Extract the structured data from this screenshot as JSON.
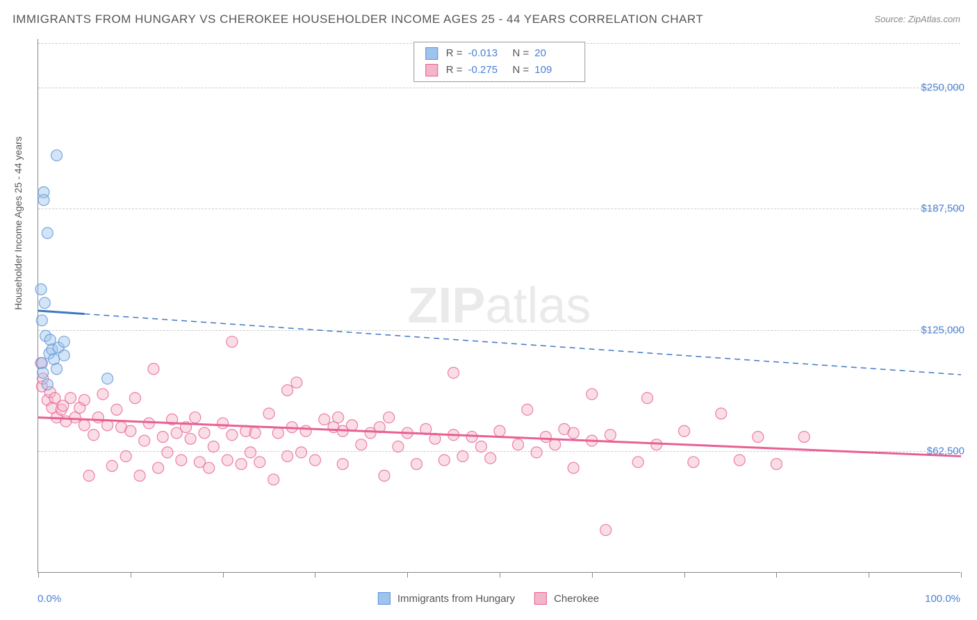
{
  "title": "IMMIGRANTS FROM HUNGARY VS CHEROKEE HOUSEHOLDER INCOME AGES 25 - 44 YEARS CORRELATION CHART",
  "source": "Source: ZipAtlas.com",
  "watermark": {
    "part1": "ZIP",
    "part2": "atlas"
  },
  "chart": {
    "type": "scatter",
    "background_color": "#ffffff",
    "grid_color": "#cccccc",
    "axis_color": "#888888",
    "ylabel": "Householder Income Ages 25 - 44 years",
    "ylabel_fontsize": 14,
    "ylabel_color": "#555555",
    "y_min": 0,
    "y_max": 275000,
    "y_ticks": [
      62500,
      125000,
      187500,
      250000
    ],
    "y_tick_labels": [
      "$62,500",
      "$125,000",
      "$187,500",
      "$250,000"
    ],
    "y_tick_color": "#4a7fd4",
    "x_min": 0,
    "x_max": 100,
    "x_ticks": [
      0,
      10,
      20,
      30,
      40,
      50,
      60,
      70,
      80,
      90,
      100
    ],
    "x_end_labels": [
      "0.0%",
      "100.0%"
    ],
    "x_tick_color": "#4a7fd4",
    "marker_radius": 8,
    "marker_opacity": 0.45,
    "series": [
      {
        "name": "Immigrants from Hungary",
        "color_fill": "#9ec3ed",
        "color_stroke": "#5a92d6",
        "stats": {
          "R": "-0.013",
          "N": "20"
        },
        "trend": {
          "x1": 0,
          "y1": 135000,
          "x2": 100,
          "y2": 102000,
          "solid_until_x": 5,
          "solid_width": 3,
          "dash": "8,6",
          "dash_width": 1.5,
          "color": "#3f77c2"
        },
        "points": [
          {
            "x": 0.4,
            "y": 108000
          },
          {
            "x": 0.4,
            "y": 130000
          },
          {
            "x": 0.5,
            "y": 103000
          },
          {
            "x": 0.6,
            "y": 196000
          },
          {
            "x": 0.6,
            "y": 192000
          },
          {
            "x": 0.7,
            "y": 139000
          },
          {
            "x": 0.8,
            "y": 122000
          },
          {
            "x": 1.0,
            "y": 97000
          },
          {
            "x": 1.2,
            "y": 113000
          },
          {
            "x": 1.3,
            "y": 120000
          },
          {
            "x": 1.5,
            "y": 115000
          },
          {
            "x": 1.7,
            "y": 110000
          },
          {
            "x": 2.0,
            "y": 215000
          },
          {
            "x": 2.0,
            "y": 105000
          },
          {
            "x": 1.0,
            "y": 175000
          },
          {
            "x": 0.3,
            "y": 146000
          },
          {
            "x": 2.2,
            "y": 116000
          },
          {
            "x": 2.8,
            "y": 112000
          },
          {
            "x": 2.8,
            "y": 119000
          },
          {
            "x": 7.5,
            "y": 100000
          }
        ]
      },
      {
        "name": "Cherokee",
        "color_fill": "#f3b5c8",
        "color_stroke": "#e85f94",
        "stats": {
          "R": "-0.275",
          "N": "109"
        },
        "trend": {
          "x1": 0,
          "y1": 80000,
          "x2": 100,
          "y2": 60000,
          "solid_until_x": 100,
          "solid_width": 3,
          "dash": "",
          "dash_width": 0,
          "color": "#e85f94"
        },
        "points": [
          {
            "x": 0.3,
            "y": 108000
          },
          {
            "x": 0.4,
            "y": 96000
          },
          {
            "x": 0.5,
            "y": 100000
          },
          {
            "x": 1.0,
            "y": 89000
          },
          {
            "x": 1.3,
            "y": 93000
          },
          {
            "x": 1.5,
            "y": 85000
          },
          {
            "x": 1.8,
            "y": 90000
          },
          {
            "x": 2.0,
            "y": 80000
          },
          {
            "x": 2.5,
            "y": 84000
          },
          {
            "x": 2.7,
            "y": 86000
          },
          {
            "x": 3.0,
            "y": 78000
          },
          {
            "x": 3.5,
            "y": 90000
          },
          {
            "x": 4.0,
            "y": 80000
          },
          {
            "x": 4.5,
            "y": 85000
          },
          {
            "x": 5.0,
            "y": 76000
          },
          {
            "x": 5.0,
            "y": 89000
          },
          {
            "x": 5.5,
            "y": 50000
          },
          {
            "x": 6.0,
            "y": 71000
          },
          {
            "x": 6.5,
            "y": 80000
          },
          {
            "x": 7.0,
            "y": 92000
          },
          {
            "x": 7.5,
            "y": 76000
          },
          {
            "x": 8.0,
            "y": 55000
          },
          {
            "x": 8.5,
            "y": 84000
          },
          {
            "x": 9.0,
            "y": 75000
          },
          {
            "x": 9.5,
            "y": 60000
          },
          {
            "x": 10,
            "y": 73000
          },
          {
            "x": 10.5,
            "y": 90000
          },
          {
            "x": 11,
            "y": 50000
          },
          {
            "x": 11.5,
            "y": 68000
          },
          {
            "x": 12,
            "y": 77000
          },
          {
            "x": 12.5,
            "y": 105000
          },
          {
            "x": 13,
            "y": 54000
          },
          {
            "x": 13.5,
            "y": 70000
          },
          {
            "x": 14,
            "y": 62000
          },
          {
            "x": 14.5,
            "y": 79000
          },
          {
            "x": 15,
            "y": 72000
          },
          {
            "x": 15.5,
            "y": 58000
          },
          {
            "x": 16,
            "y": 75000
          },
          {
            "x": 16.5,
            "y": 69000
          },
          {
            "x": 17,
            "y": 80000
          },
          {
            "x": 17.5,
            "y": 57000
          },
          {
            "x": 18,
            "y": 72000
          },
          {
            "x": 18.5,
            "y": 54000
          },
          {
            "x": 19,
            "y": 65000
          },
          {
            "x": 20,
            "y": 77000
          },
          {
            "x": 20.5,
            "y": 58000
          },
          {
            "x": 21,
            "y": 119000
          },
          {
            "x": 21,
            "y": 71000
          },
          {
            "x": 22,
            "y": 56000
          },
          {
            "x": 22.5,
            "y": 73000
          },
          {
            "x": 23,
            "y": 62000
          },
          {
            "x": 23.5,
            "y": 72000
          },
          {
            "x": 24,
            "y": 57000
          },
          {
            "x": 25,
            "y": 82000
          },
          {
            "x": 25.5,
            "y": 48000
          },
          {
            "x": 26,
            "y": 72000
          },
          {
            "x": 27,
            "y": 60000
          },
          {
            "x": 27,
            "y": 94000
          },
          {
            "x": 27.5,
            "y": 75000
          },
          {
            "x": 28,
            "y": 98000
          },
          {
            "x": 28.5,
            "y": 62000
          },
          {
            "x": 29,
            "y": 73000
          },
          {
            "x": 30,
            "y": 58000
          },
          {
            "x": 31,
            "y": 79000
          },
          {
            "x": 32,
            "y": 75000
          },
          {
            "x": 32.5,
            "y": 80000
          },
          {
            "x": 33,
            "y": 73000
          },
          {
            "x": 33,
            "y": 56000
          },
          {
            "x": 34,
            "y": 76000
          },
          {
            "x": 35,
            "y": 66000
          },
          {
            "x": 36,
            "y": 72000
          },
          {
            "x": 37,
            "y": 75000
          },
          {
            "x": 37.5,
            "y": 50000
          },
          {
            "x": 38,
            "y": 80000
          },
          {
            "x": 39,
            "y": 65000
          },
          {
            "x": 40,
            "y": 72000
          },
          {
            "x": 41,
            "y": 56000
          },
          {
            "x": 42,
            "y": 74000
          },
          {
            "x": 43,
            "y": 69000
          },
          {
            "x": 44,
            "y": 58000
          },
          {
            "x": 45,
            "y": 103000
          },
          {
            "x": 45,
            "y": 71000
          },
          {
            "x": 46,
            "y": 60000
          },
          {
            "x": 47,
            "y": 70000
          },
          {
            "x": 48,
            "y": 65000
          },
          {
            "x": 49,
            "y": 59000
          },
          {
            "x": 50,
            "y": 73000
          },
          {
            "x": 52,
            "y": 66000
          },
          {
            "x": 53,
            "y": 84000
          },
          {
            "x": 54,
            "y": 62000
          },
          {
            "x": 55,
            "y": 70000
          },
          {
            "x": 56,
            "y": 66000
          },
          {
            "x": 57,
            "y": 74000
          },
          {
            "x": 58,
            "y": 72000
          },
          {
            "x": 58,
            "y": 54000
          },
          {
            "x": 60,
            "y": 92000
          },
          {
            "x": 60,
            "y": 68000
          },
          {
            "x": 61.5,
            "y": 22000
          },
          {
            "x": 62,
            "y": 71000
          },
          {
            "x": 65,
            "y": 57000
          },
          {
            "x": 66,
            "y": 90000
          },
          {
            "x": 67,
            "y": 66000
          },
          {
            "x": 70,
            "y": 73000
          },
          {
            "x": 71,
            "y": 57000
          },
          {
            "x": 74,
            "y": 82000
          },
          {
            "x": 76,
            "y": 58000
          },
          {
            "x": 78,
            "y": 70000
          },
          {
            "x": 80,
            "y": 56000
          },
          {
            "x": 83,
            "y": 70000
          }
        ]
      }
    ]
  },
  "bottom_legend": [
    {
      "label": "Immigrants from Hungary"
    },
    {
      "label": "Cherokee"
    }
  ]
}
